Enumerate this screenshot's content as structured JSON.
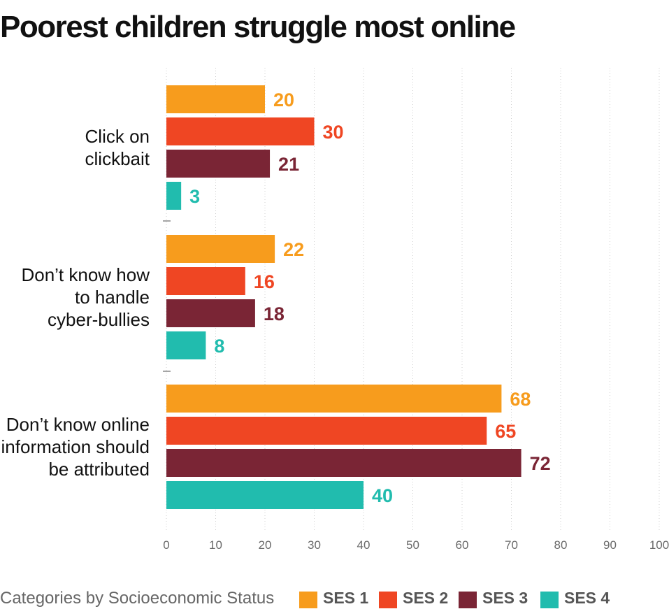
{
  "chart_data": {
    "type": "bar",
    "orientation": "horizontal",
    "title": "Poorest children struggle most online",
    "categories": [
      [
        "Click on",
        "clickbait"
      ],
      [
        "Don’t know how",
        "to handle",
        "cyber-bullies"
      ],
      [
        "Don’t know online",
        "information should",
        "be attributed"
      ]
    ],
    "series": [
      {
        "name": "SES 1",
        "color": "#F79C1D",
        "values": [
          20,
          22,
          68
        ]
      },
      {
        "name": "SES 2",
        "color": "#EF4623",
        "values": [
          30,
          16,
          65
        ]
      },
      {
        "name": "SES 3",
        "color": "#7A2535",
        "values": [
          21,
          18,
          72
        ]
      },
      {
        "name": "SES 4",
        "color": "#21BCAE",
        "values": [
          3,
          8,
          40
        ]
      }
    ],
    "xlim": [
      0,
      100
    ],
    "xticks": [
      0,
      10,
      20,
      30,
      40,
      50,
      60,
      70,
      80,
      90,
      100
    ],
    "grid": "vertical dotted",
    "data_labels": true,
    "legend": {
      "title": "Categories by Socioeconomic Status",
      "placement": "bottom"
    }
  }
}
